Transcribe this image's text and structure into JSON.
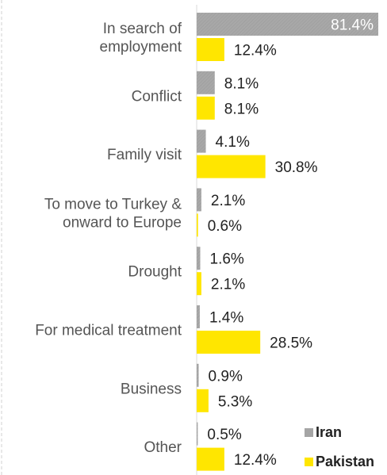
{
  "chart_data": {
    "type": "bar",
    "orientation": "horizontal",
    "categories": [
      [
        "In search of",
        "employment"
      ],
      [
        "Conflict"
      ],
      [
        "Family visit"
      ],
      [
        "To move to Turkey &",
        "onward to Europe"
      ],
      [
        "Drought"
      ],
      [
        "For medical treatment"
      ],
      [
        "Business"
      ],
      [
        "Other"
      ]
    ],
    "series": [
      {
        "name": "Iran",
        "color": "#A5A5A5",
        "values": [
          81.4,
          8.1,
          4.1,
          2.1,
          1.6,
          1.4,
          0.9,
          0.5
        ],
        "labels": [
          "81.4%",
          "8.1%",
          "4.1%",
          "2.1%",
          "1.6%",
          "1.4%",
          "0.9%",
          "0.5%"
        ]
      },
      {
        "name": "Pakistan",
        "color": "#FFE600",
        "values": [
          12.4,
          8.1,
          30.8,
          0.6,
          2.1,
          28.5,
          5.3,
          12.4
        ],
        "labels": [
          "12.4%",
          "8.1%",
          "30.8%",
          "0.6%",
          "2.1%",
          "28.5%",
          "5.3%",
          "12.4%"
        ]
      }
    ],
    "xlim": [
      0,
      81.4
    ],
    "legend_position": "bottom-right",
    "grid": false
  }
}
